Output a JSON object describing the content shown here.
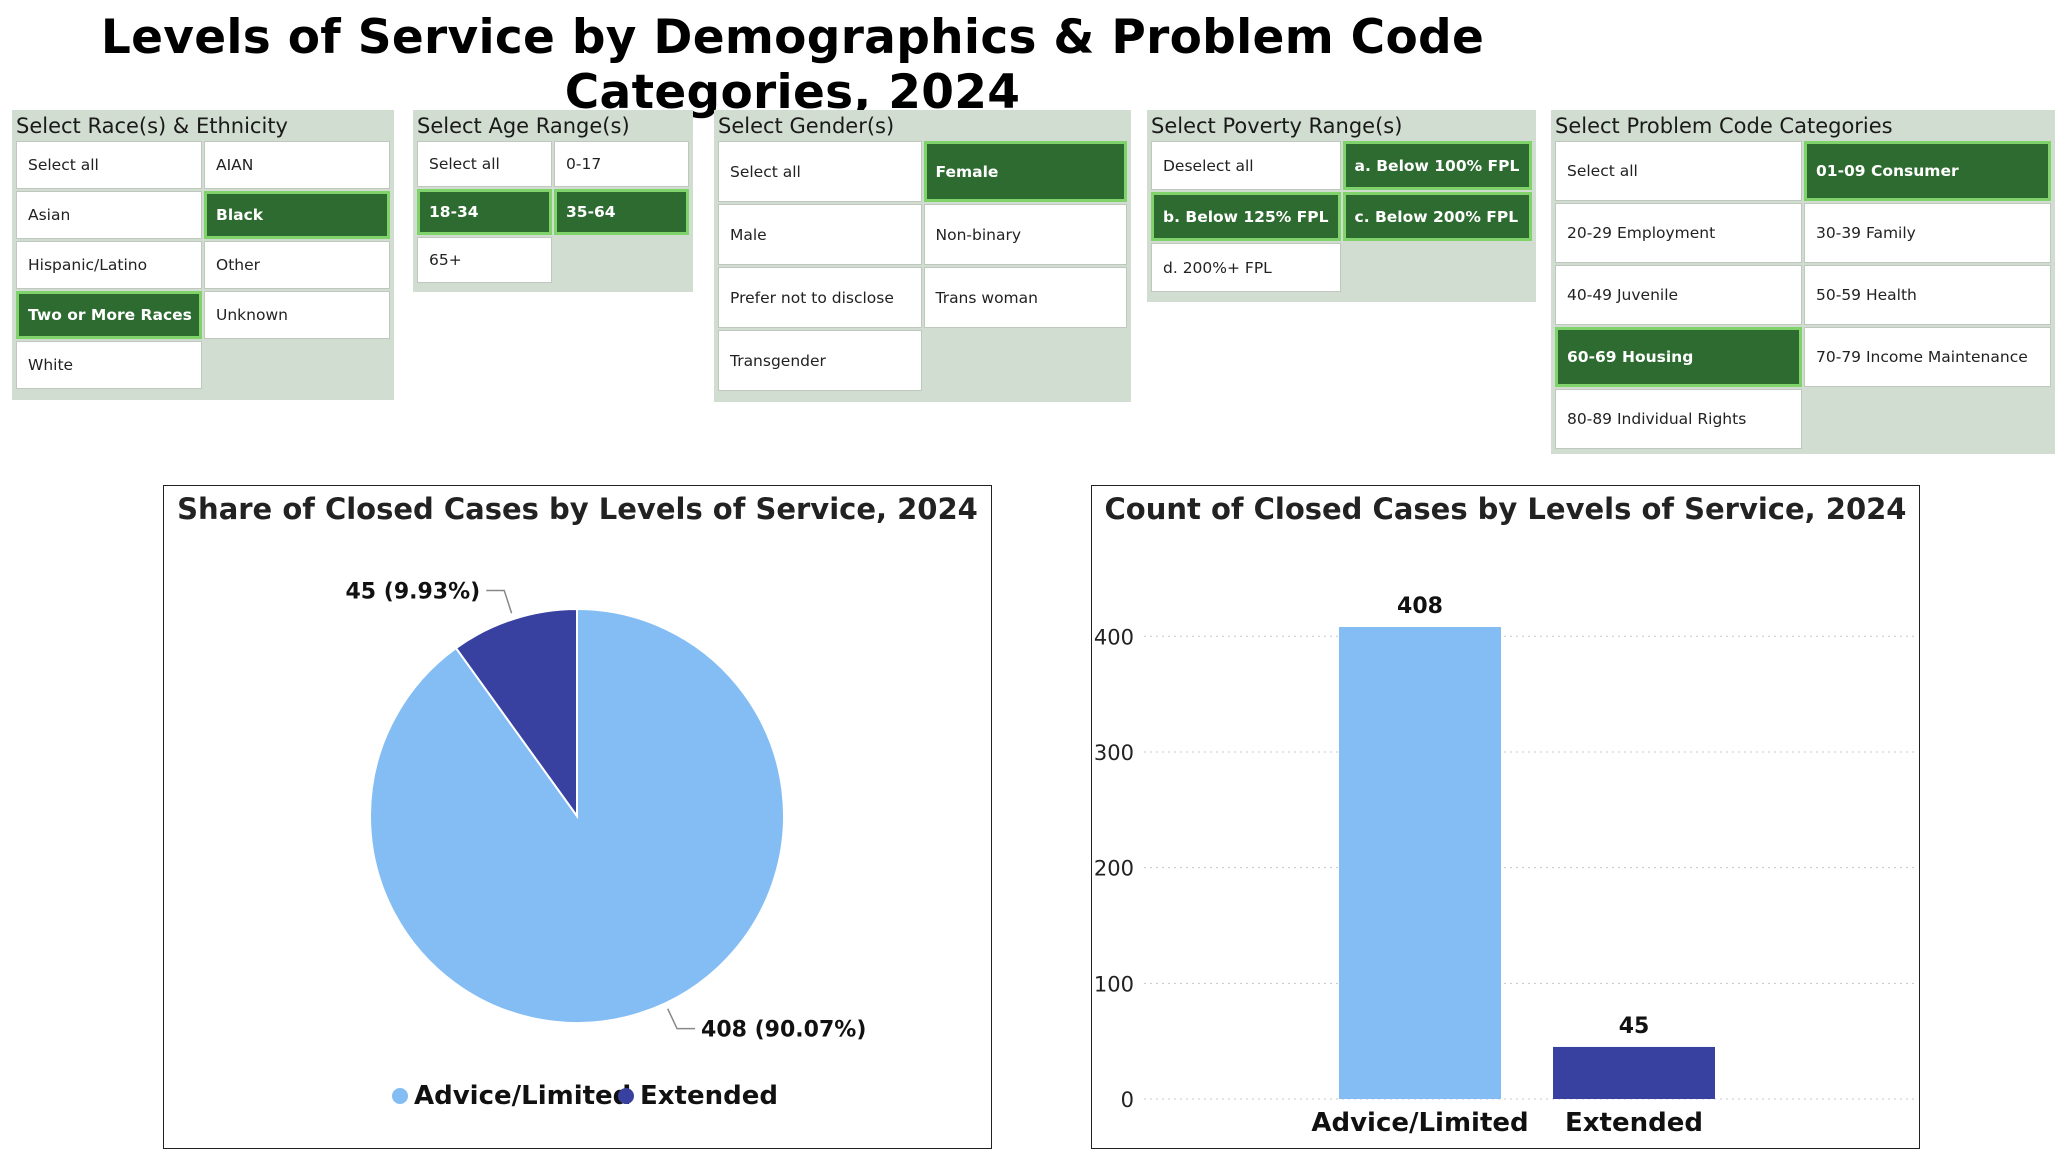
{
  "page": {
    "title": "Levels of Service by Demographics & Problem Code Categories, 2024"
  },
  "slicers": {
    "race": {
      "title": "Select Race(s) & Ethnicity",
      "options": [
        {
          "label": "Select all",
          "selected": false
        },
        {
          "label": "AIAN",
          "selected": false
        },
        {
          "label": "Asian",
          "selected": false
        },
        {
          "label": "Black",
          "selected": true
        },
        {
          "label": "Hispanic/Latino",
          "selected": false
        },
        {
          "label": "Other",
          "selected": false
        },
        {
          "label": "Two or More Races",
          "selected": true
        },
        {
          "label": "Unknown",
          "selected": false
        },
        {
          "label": "White",
          "selected": false
        }
      ]
    },
    "age": {
      "title": "Select Age Range(s)",
      "options": [
        {
          "label": "Select all",
          "selected": false
        },
        {
          "label": "0-17",
          "selected": false
        },
        {
          "label": "18-34",
          "selected": true
        },
        {
          "label": "35-64",
          "selected": true
        },
        {
          "label": "65+",
          "selected": false
        }
      ]
    },
    "gender": {
      "title": "Select Gender(s)",
      "options": [
        {
          "label": "Select all",
          "selected": false
        },
        {
          "label": "Female",
          "selected": true
        },
        {
          "label": "Male",
          "selected": false
        },
        {
          "label": "Non-binary",
          "selected": false
        },
        {
          "label": "Prefer not to disclose",
          "selected": false
        },
        {
          "label": "Trans woman",
          "selected": false
        },
        {
          "label": "Transgender",
          "selected": false
        }
      ]
    },
    "poverty": {
      "title": "Select Poverty Range(s)",
      "options": [
        {
          "label": "Deselect all",
          "selected": false
        },
        {
          "label": "a. Below 100% FPL",
          "selected": true
        },
        {
          "label": "b. Below 125% FPL",
          "selected": true
        },
        {
          "label": "c. Below 200% FPL",
          "selected": true
        },
        {
          "label": "d. 200%+ FPL",
          "selected": false
        }
      ]
    },
    "problem": {
      "title": "Select Problem Code Categories",
      "options": [
        {
          "label": "Select all",
          "selected": false
        },
        {
          "label": "01-09 Consumer",
          "selected": true
        },
        {
          "label": "20-29 Employment",
          "selected": false
        },
        {
          "label": "30-39 Family",
          "selected": false
        },
        {
          "label": "40-49 Juvenile",
          "selected": false
        },
        {
          "label": "50-59 Health",
          "selected": false
        },
        {
          "label": "60-69 Housing",
          "selected": true
        },
        {
          "label": "70-79 Income Maintenance",
          "selected": false
        },
        {
          "label": "80-89 Individual Rights",
          "selected": false
        }
      ]
    }
  },
  "colors": {
    "advice": "#83bdf4",
    "extended": "#3941a0",
    "selected_bg": "#2e6b30",
    "selected_border": "#7fd36a"
  },
  "chart_data": [
    {
      "type": "pie",
      "title": "Share of Closed Cases by Levels of Service, 2024",
      "categories": [
        "Advice/Limited",
        "Extended"
      ],
      "values": [
        408,
        45
      ],
      "labels": [
        "408 (90.07%)",
        "45 (9.93%)"
      ],
      "legend": [
        "Advice/Limited",
        "Extended"
      ],
      "legend_position": "bottom-center"
    },
    {
      "type": "bar",
      "title": "Count of Closed Cases by Levels of Service, 2024",
      "categories": [
        "Advice/Limited",
        "Extended"
      ],
      "values": [
        408,
        45
      ],
      "data_labels": [
        "408",
        "45"
      ],
      "ylim": [
        0,
        440
      ],
      "yticks": [
        "0",
        "100",
        "200",
        "300",
        "400"
      ],
      "ytick_values": [
        0,
        100,
        200,
        300,
        400
      ],
      "grid": true
    }
  ]
}
